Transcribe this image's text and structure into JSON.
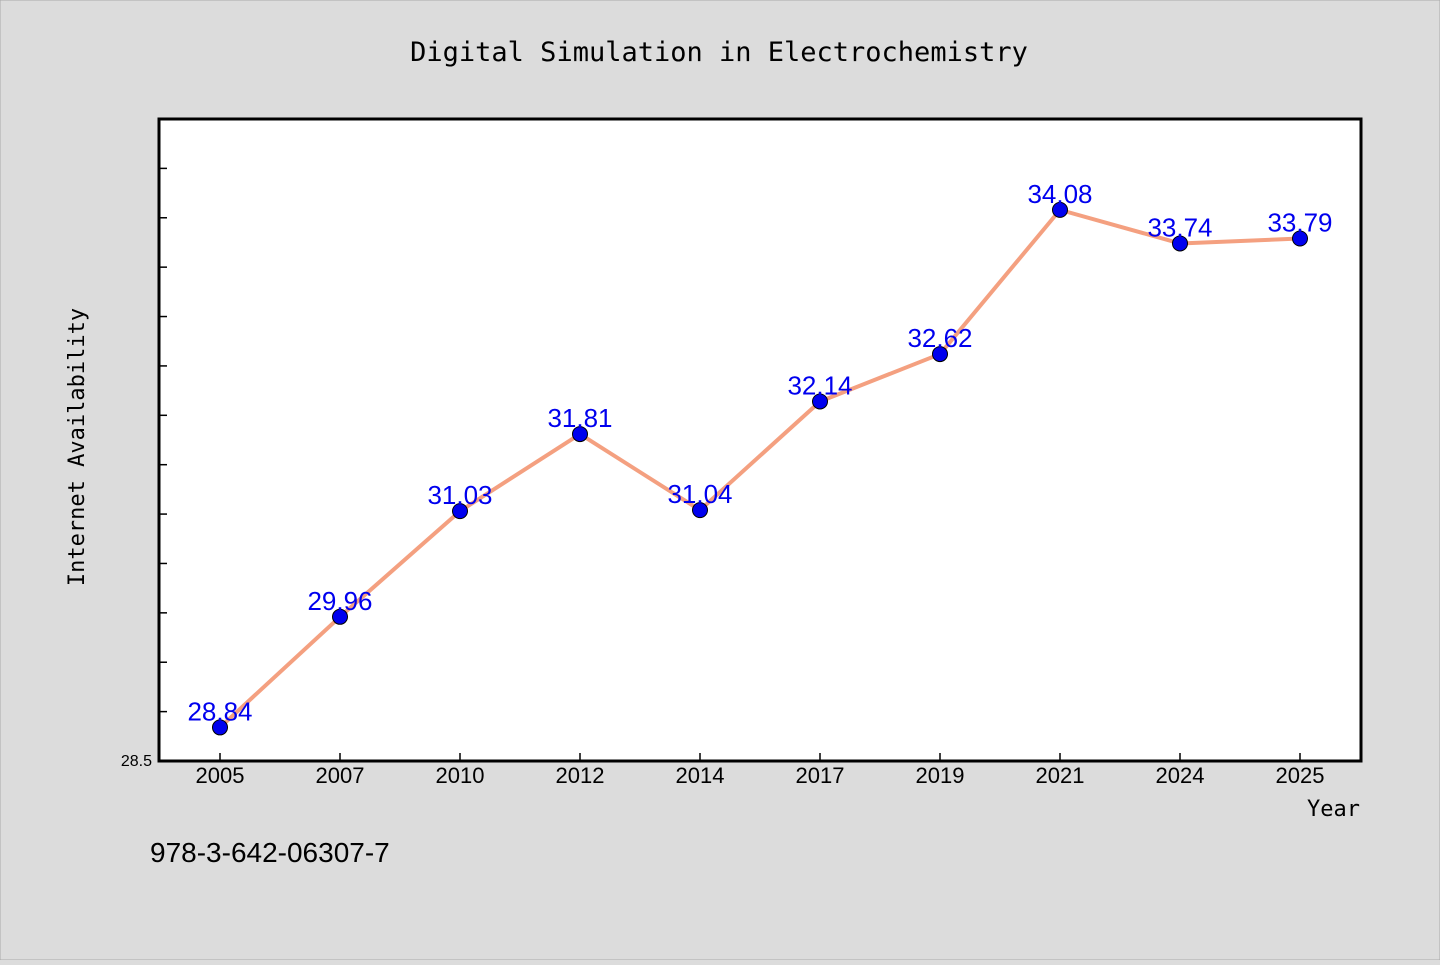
{
  "chart_data": {
    "type": "line",
    "title": "Digital Simulation in Electrochemistry",
    "xlabel": "Year",
    "ylabel": "Internet Availability",
    "categories": [
      "2005",
      "2007",
      "2010",
      "2012",
      "2014",
      "2017",
      "2019",
      "2021",
      "2024",
      "2025"
    ],
    "series": [
      {
        "values": [
          28.84,
          29.96,
          31.03,
          31.81,
          31.04,
          32.14,
          32.62,
          34.08,
          33.74,
          33.79
        ],
        "labels": [
          "28.84",
          "29.96",
          "31.03",
          "31.81",
          "31.04",
          "32.14",
          "32.62",
          "34.08",
          "33.74",
          "33.79"
        ]
      }
    ],
    "ylim": [
      28.5,
      35.0
    ],
    "yticks_labeled": [
      "28.5"
    ],
    "ytick_minor_step": 0.5,
    "grid": false,
    "legend": "none",
    "colors": {
      "background": "#dcdcdc",
      "plot_background": "#ffffff",
      "line": "#f4a080",
      "marker": "#0000ee",
      "data_label": "#0000ee"
    }
  },
  "footnote": "978-3-642-06307-7"
}
